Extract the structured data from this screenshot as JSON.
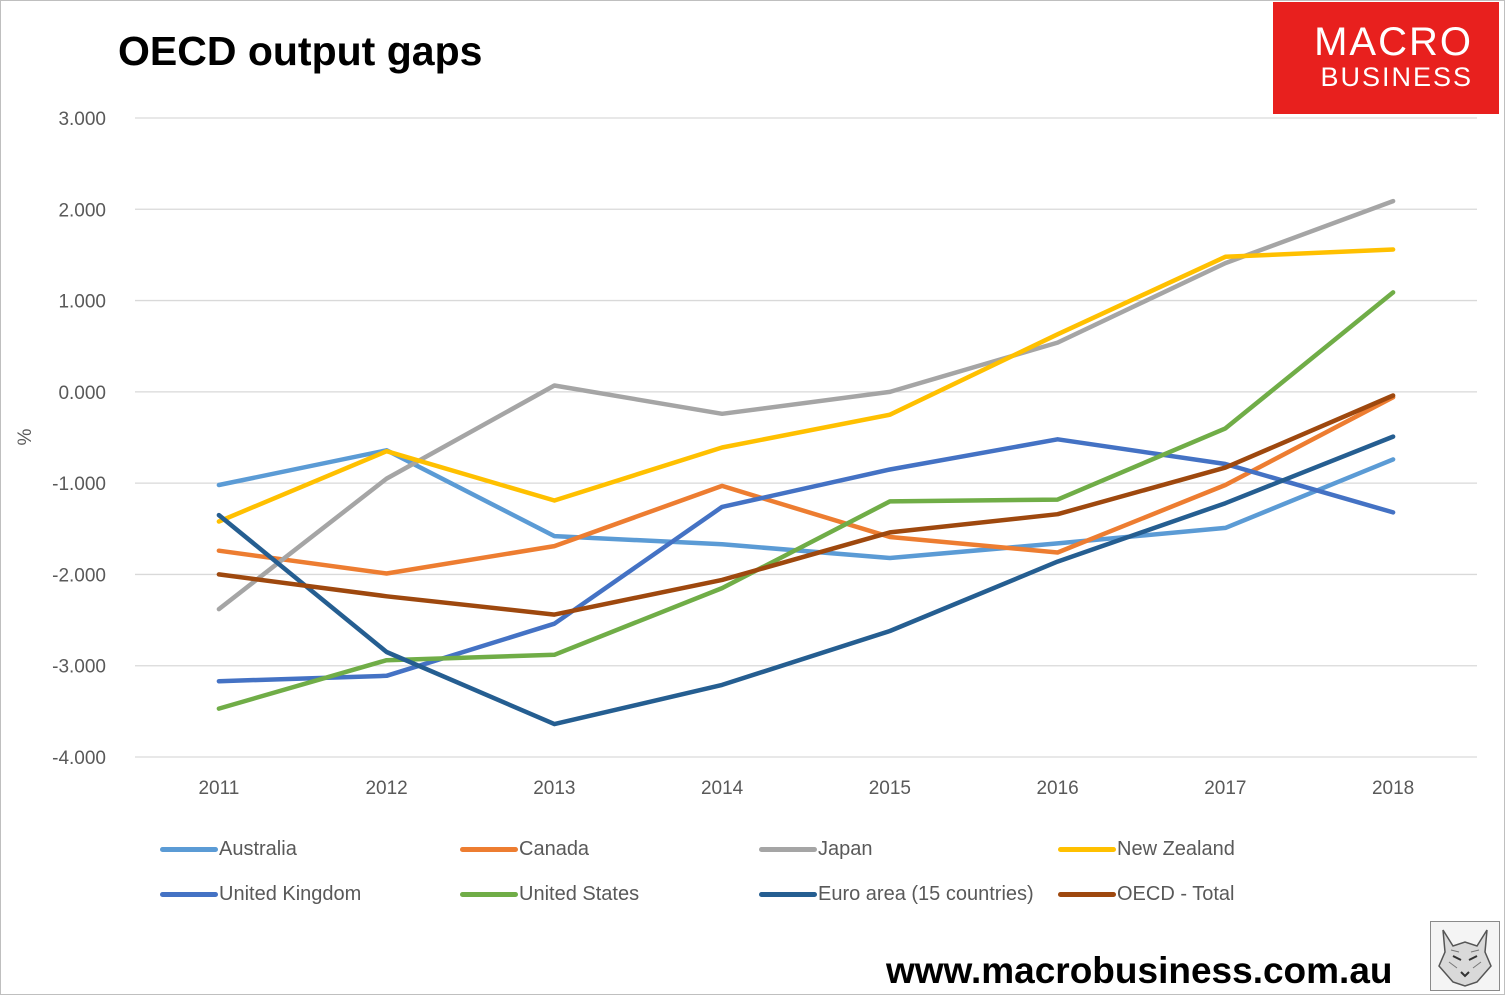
{
  "title": "OECD output gaps",
  "logo": {
    "line1": "MACRO",
    "line2": "BUSINESS"
  },
  "website": "www.macrobusiness.com.au",
  "chart_data": {
    "type": "line",
    "title": "OECD output gaps",
    "xlabel": "",
    "ylabel": "%",
    "ylim": [
      -4,
      3
    ],
    "yticks": [
      3,
      2,
      1,
      0,
      -1,
      -2,
      -3,
      -4
    ],
    "ytick_labels": [
      "3.000",
      "2.000",
      "1.000",
      "0.000",
      "-1.000",
      "-2.000",
      "-3.000",
      "-4.000"
    ],
    "x": [
      "2011",
      "2012",
      "2013",
      "2014",
      "2015",
      "2016",
      "2017",
      "2018"
    ],
    "grid": true,
    "legend_position": "bottom",
    "series": [
      {
        "name": "Australia",
        "color": "#5b9bd5",
        "values": [
          -1.02,
          -0.64,
          -1.58,
          -1.67,
          -1.82,
          -1.66,
          -1.49,
          -0.74
        ]
      },
      {
        "name": "Canada",
        "color": "#ed7d31",
        "values": [
          -1.74,
          -1.99,
          -1.69,
          -1.03,
          -1.59,
          -1.76,
          -1.02,
          -0.06
        ]
      },
      {
        "name": "Japan",
        "color": "#a5a5a5",
        "values": [
          -2.38,
          -0.95,
          0.07,
          -0.24,
          0.0,
          0.54,
          1.41,
          2.09
        ]
      },
      {
        "name": "New Zealand",
        "color": "#ffc000",
        "values": [
          -1.42,
          -0.65,
          -1.19,
          -0.61,
          -0.25,
          0.63,
          1.48,
          1.56
        ]
      },
      {
        "name": "United Kingdom",
        "color": "#4472c4",
        "values": [
          -3.17,
          -3.11,
          -2.54,
          -1.26,
          -0.85,
          -0.52,
          -0.79,
          -1.32
        ]
      },
      {
        "name": "United States",
        "color": "#70ad47",
        "values": [
          -3.47,
          -2.94,
          -2.88,
          -2.15,
          -1.2,
          -1.18,
          -0.4,
          1.09
        ]
      },
      {
        "name": "Euro area (15 countries)",
        "color": "#255e91",
        "values": [
          -1.35,
          -2.85,
          -3.64,
          -3.21,
          -2.62,
          -1.86,
          -1.22,
          -0.49
        ]
      },
      {
        "name": "OECD - Total",
        "color": "#9e480e",
        "values": [
          -2.0,
          -2.24,
          -2.44,
          -2.06,
          -1.54,
          -1.34,
          -0.83,
          -0.04
        ]
      }
    ]
  }
}
